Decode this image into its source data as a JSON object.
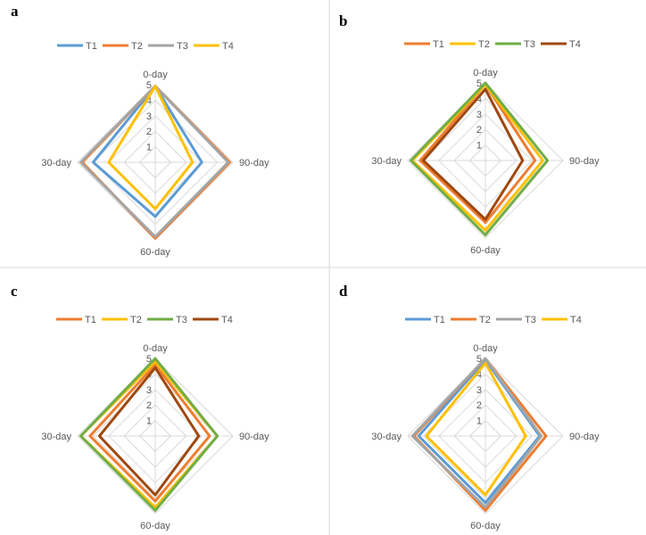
{
  "figure": {
    "colors": {
      "T1_blue": "#5b9bd5",
      "T2_orange": "#ed7d31",
      "T3_gray": "#a5a5a5",
      "T4_yellow": "#ffc000",
      "green": "#70ad47",
      "brown": "#9e480e",
      "grid": "#d9d9d9",
      "divider": "#d9d9d9"
    }
  },
  "chart_data": [
    {
      "panel": "a",
      "type": "radar",
      "axes": [
        "0-day",
        "90-day",
        "60-day",
        "30-day"
      ],
      "rlim": [
        0,
        5
      ],
      "ticks": [
        "1",
        "2",
        "3",
        "4",
        "5"
      ],
      "legend": "top",
      "series": [
        {
          "name": "T1",
          "color": "#5b9bd5",
          "values": [
            4.9,
            3.0,
            3.5,
            4.0
          ]
        },
        {
          "name": "T2",
          "color": "#ed7d31",
          "values": [
            4.9,
            4.8,
            4.9,
            4.7
          ]
        },
        {
          "name": "T3",
          "color": "#a5a5a5",
          "values": [
            4.9,
            4.7,
            4.8,
            4.8
          ]
        },
        {
          "name": "T4",
          "color": "#ffc000",
          "values": [
            4.9,
            2.4,
            3.0,
            3.0
          ]
        }
      ]
    },
    {
      "panel": "b",
      "type": "radar",
      "axes": [
        "0-day",
        "90-day",
        "60-day",
        "30-day"
      ],
      "rlim": [
        0,
        5
      ],
      "ticks": [
        "1",
        "2",
        "3",
        "4",
        "5"
      ],
      "legend": "top",
      "series": [
        {
          "name": "T1",
          "color": "#ed7d31",
          "values": [
            4.9,
            3.2,
            4.0,
            4.2
          ]
        },
        {
          "name": "T2",
          "color": "#ffc000",
          "values": [
            4.9,
            3.7,
            4.5,
            4.7
          ]
        },
        {
          "name": "T3",
          "color": "#70ad47",
          "values": [
            5.0,
            4.0,
            4.8,
            4.8
          ]
        },
        {
          "name": "T4",
          "color": "#9e480e",
          "values": [
            4.6,
            2.4,
            3.8,
            4.0
          ]
        }
      ]
    },
    {
      "panel": "c",
      "type": "radar",
      "axes": [
        "0-day",
        "90-day",
        "60-day",
        "30-day"
      ],
      "rlim": [
        0,
        5
      ],
      "ticks": [
        "1",
        "2",
        "3",
        "4",
        "5"
      ],
      "legend": "top",
      "series": [
        {
          "name": "T1",
          "color": "#ed7d31",
          "values": [
            4.6,
            3.5,
            4.2,
            4.2
          ]
        },
        {
          "name": "T2",
          "color": "#ffc000",
          "values": [
            4.8,
            4.0,
            4.6,
            4.8
          ]
        },
        {
          "name": "T3",
          "color": "#70ad47",
          "values": [
            5.0,
            4.0,
            4.8,
            4.8
          ]
        },
        {
          "name": "T4",
          "color": "#9e480e",
          "values": [
            4.4,
            2.8,
            3.8,
            3.6
          ]
        }
      ]
    },
    {
      "panel": "d",
      "type": "radar",
      "axes": [
        "0-day",
        "90-day",
        "60-day",
        "30-day"
      ],
      "rlim": [
        0,
        5
      ],
      "ticks": [
        "1",
        "2",
        "3",
        "4",
        "5"
      ],
      "legend": "top",
      "series": [
        {
          "name": "T1",
          "color": "#5b9bd5",
          "values": [
            4.9,
            3.5,
            4.3,
            4.3
          ]
        },
        {
          "name": "T2",
          "color": "#ed7d31",
          "values": [
            5.0,
            3.9,
            4.8,
            4.6
          ]
        },
        {
          "name": "T3",
          "color": "#a5a5a5",
          "values": [
            5.0,
            3.6,
            4.6,
            4.7
          ]
        },
        {
          "name": "T4",
          "color": "#ffc000",
          "values": [
            4.7,
            2.6,
            3.8,
            3.8
          ]
        }
      ]
    }
  ]
}
